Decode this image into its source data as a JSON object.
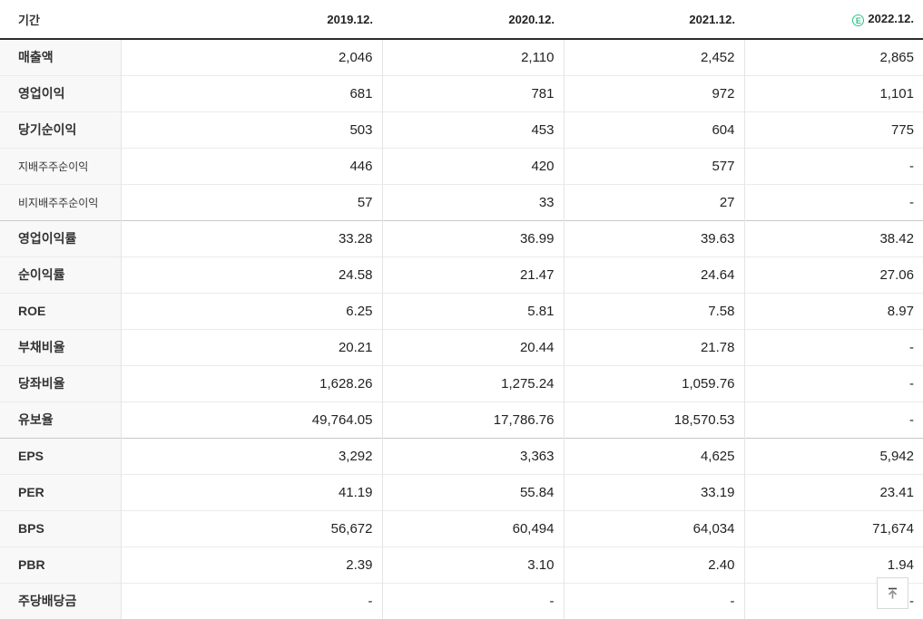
{
  "colors": {
    "estimate_green": "#2fc485",
    "header_border": "#2b2b2b",
    "label_bg": "#f8f8f8"
  },
  "table": {
    "header": {
      "period_label": "기간",
      "columns": [
        "2019.12.",
        "2020.12.",
        "2021.12.",
        "2022.12."
      ],
      "estimate_marker": "E"
    },
    "rows": [
      {
        "label": "매출액",
        "type": "main",
        "group_start": false,
        "values": [
          "2,046",
          "2,110",
          "2,452",
          "2,865"
        ]
      },
      {
        "label": "영업이익",
        "type": "main",
        "group_start": false,
        "values": [
          "681",
          "781",
          "972",
          "1,101"
        ]
      },
      {
        "label": "당기순이익",
        "type": "main",
        "group_start": false,
        "values": [
          "503",
          "453",
          "604",
          "775"
        ]
      },
      {
        "label": "지배주주순이익",
        "type": "sub",
        "group_start": false,
        "values": [
          "446",
          "420",
          "577",
          "-"
        ]
      },
      {
        "label": "비지배주주순이익",
        "type": "sub",
        "group_start": false,
        "values": [
          "57",
          "33",
          "27",
          "-"
        ]
      },
      {
        "label": "영업이익률",
        "type": "main",
        "group_start": true,
        "values": [
          "33.28",
          "36.99",
          "39.63",
          "38.42"
        ]
      },
      {
        "label": "순이익률",
        "type": "main",
        "group_start": false,
        "values": [
          "24.58",
          "21.47",
          "24.64",
          "27.06"
        ]
      },
      {
        "label": "ROE",
        "type": "main",
        "group_start": false,
        "values": [
          "6.25",
          "5.81",
          "7.58",
          "8.97"
        ]
      },
      {
        "label": "부채비율",
        "type": "main",
        "group_start": false,
        "values": [
          "20.21",
          "20.44",
          "21.78",
          "-"
        ]
      },
      {
        "label": "당좌비율",
        "type": "main",
        "group_start": false,
        "values": [
          "1,628.26",
          "1,275.24",
          "1,059.76",
          "-"
        ]
      },
      {
        "label": "유보율",
        "type": "main",
        "group_start": false,
        "values": [
          "49,764.05",
          "17,786.76",
          "18,570.53",
          "-"
        ]
      },
      {
        "label": "EPS",
        "type": "main",
        "group_start": true,
        "values": [
          "3,292",
          "3,363",
          "4,625",
          "5,942"
        ]
      },
      {
        "label": "PER",
        "type": "main",
        "group_start": false,
        "values": [
          "41.19",
          "55.84",
          "33.19",
          "23.41"
        ]
      },
      {
        "label": "BPS",
        "type": "main",
        "group_start": false,
        "values": [
          "56,672",
          "60,494",
          "64,034",
          "71,674"
        ]
      },
      {
        "label": "PBR",
        "type": "main",
        "group_start": false,
        "values": [
          "2.39",
          "3.10",
          "2.40",
          "1.94"
        ]
      },
      {
        "label": "주당배당금",
        "type": "main",
        "group_start": false,
        "values": [
          "-",
          "-",
          "-",
          "-"
        ]
      }
    ]
  },
  "scroll_top_button": {
    "icon": "arrow-up-to-top"
  }
}
